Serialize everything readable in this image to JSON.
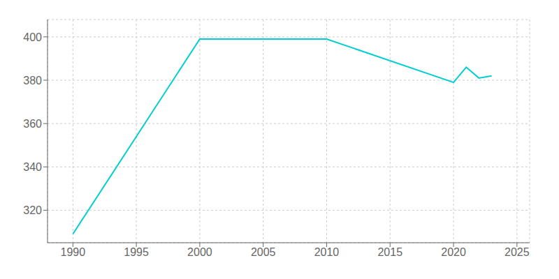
{
  "chart_data": {
    "type": "line",
    "x": [
      1990,
      2000,
      2010,
      2020,
      2021,
      2022,
      2023
    ],
    "values": [
      309,
      399,
      399,
      379,
      386,
      381,
      382
    ],
    "color": "#00CED1",
    "xlim": [
      1988,
      2026
    ],
    "ylim": [
      305,
      408
    ],
    "xticks": [
      1990,
      1995,
      2000,
      2005,
      2010,
      2015,
      2020,
      2025
    ],
    "yticks": [
      320,
      340,
      360,
      380,
      400
    ],
    "grid": true
  }
}
